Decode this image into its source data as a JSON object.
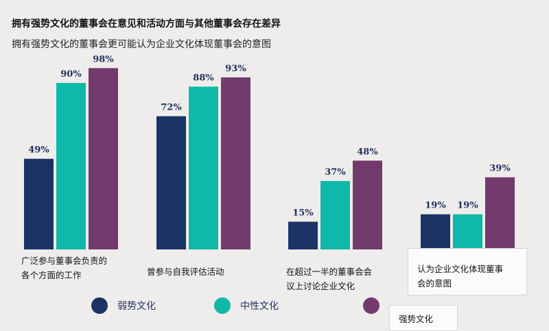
{
  "title": "拥有强势文化的董事会在意见和活动方面与其他董事会存在差异",
  "subtitle": "拥有强势文化的董事会更可能认为企业文化体现董事会的意图",
  "colors": {
    "weak": "#1b3364",
    "neutral": "#10b8aa",
    "strong": "#733a6e",
    "label": "#1f3060"
  },
  "chart_data": {
    "type": "bar",
    "title": "拥有强势文化的董事会在意见和活动方面与其他董事会存在差异",
    "subtitle": "拥有强势文化的董事会更可能认为企业文化体现董事会的意图",
    "categories": [
      [
        "广泛参与董事会负责的",
        "各个方面的工作"
      ],
      [
        "曾参与自我评估活动"
      ],
      [
        "在超过一半的董事会会",
        "议上讨论企业文化"
      ],
      [
        "认为企业文化体现董事",
        "会的意图"
      ]
    ],
    "series": [
      {
        "name": "弱势文化",
        "values": [
          49,
          72,
          15,
          19
        ],
        "labels": [
          "49%",
          "72%",
          "15%",
          "19%"
        ]
      },
      {
        "name": "中性文化",
        "values": [
          90,
          88,
          37,
          19
        ],
        "labels": [
          "90%",
          "88%",
          "37%",
          "19%"
        ]
      },
      {
        "name": "强势文化",
        "values": [
          98,
          93,
          48,
          39
        ],
        "labels": [
          "98%",
          "93%",
          "48%",
          "39%"
        ]
      }
    ],
    "ylim": [
      0,
      100
    ],
    "unit": "%",
    "grid": false,
    "legend_position": "bottom"
  }
}
